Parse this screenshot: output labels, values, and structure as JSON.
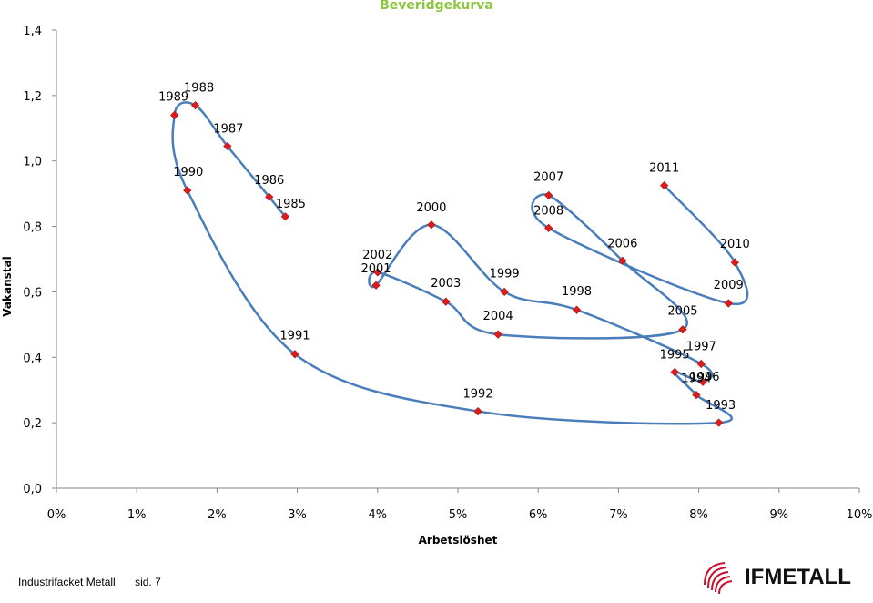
{
  "chart_data": {
    "type": "line",
    "title": "Beveridgekurva",
    "xlabel": "Arbetslöshet",
    "ylabel": "Vakanstal",
    "xlim": [
      0,
      10
    ],
    "ylim": [
      0,
      1.4
    ],
    "x_tick_labels": [
      "0%",
      "1%",
      "2%",
      "3%",
      "4%",
      "5%",
      "6%",
      "7%",
      "8%",
      "9%",
      "10%"
    ],
    "x_tick_values": [
      0,
      1,
      2,
      3,
      4,
      5,
      6,
      7,
      8,
      9,
      10
    ],
    "y_tick_labels": [
      "0,0",
      "0,2",
      "0,4",
      "0,6",
      "0,8",
      "1,0",
      "1,2",
      "1,4"
    ],
    "y_tick_values": [
      0,
      0.2,
      0.4,
      0.6,
      0.8,
      1.0,
      1.2,
      1.4
    ],
    "grid": false,
    "series": [
      {
        "points": [
          {
            "label": "1985",
            "x": 2.85,
            "y": 0.83
          },
          {
            "label": "1986",
            "x": 2.65,
            "y": 0.89
          },
          {
            "label": "1987",
            "x": 2.13,
            "y": 1.045
          },
          {
            "label": "1988",
            "x": 1.73,
            "y": 1.17
          },
          {
            "label": "1989",
            "x": 1.47,
            "y": 1.14
          },
          {
            "label": "1990",
            "x": 1.63,
            "y": 0.91
          },
          {
            "label": "1991",
            "x": 2.97,
            "y": 0.41
          },
          {
            "label": "1992",
            "x": 5.25,
            "y": 0.235
          },
          {
            "label": "1993",
            "x": 8.25,
            "y": 0.2
          },
          {
            "label": "1994",
            "x": 7.97,
            "y": 0.285
          },
          {
            "label": "1995",
            "x": 7.7,
            "y": 0.355
          },
          {
            "label": "1996",
            "x": 8.05,
            "y": 0.325
          },
          {
            "label": "1997",
            "x": 8.03,
            "y": 0.38
          },
          {
            "label": "1998",
            "x": 6.48,
            "y": 0.545
          },
          {
            "label": "1999",
            "x": 5.58,
            "y": 0.6
          },
          {
            "label": "2000",
            "x": 4.67,
            "y": 0.805
          },
          {
            "label": "2001",
            "x": 3.98,
            "y": 0.62
          },
          {
            "label": "2002",
            "x": 4.0,
            "y": 0.66
          },
          {
            "label": "2003",
            "x": 4.85,
            "y": 0.57
          },
          {
            "label": "2004",
            "x": 5.5,
            "y": 0.47
          },
          {
            "label": "2005",
            "x": 7.8,
            "y": 0.485
          },
          {
            "label": "2006",
            "x": 7.05,
            "y": 0.695
          },
          {
            "label": "2007",
            "x": 6.13,
            "y": 0.895
          },
          {
            "label": "2008",
            "x": 6.13,
            "y": 0.795
          },
          {
            "label": "2009",
            "x": 8.37,
            "y": 0.565
          },
          {
            "label": "2010",
            "x": 8.45,
            "y": 0.69
          },
          {
            "label": "2011",
            "x": 7.57,
            "y": 0.925
          }
        ]
      }
    ],
    "line_color": "#4a7ebb",
    "marker_color": "#e01b1b"
  },
  "footer": {
    "org": "Industrifacket Metall",
    "page": "sid. 7"
  },
  "logo": {
    "text": "IFMETALL",
    "color": "#c8102e"
  }
}
